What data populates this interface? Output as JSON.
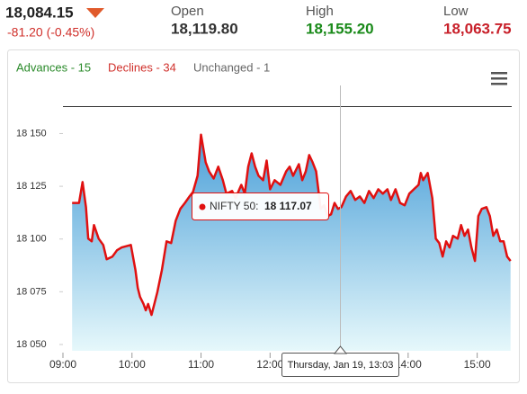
{
  "quote": {
    "last": "18,084.15",
    "change": "-81.20 (-0.45%)",
    "open_label": "Open",
    "open": "18,119.80",
    "high_label": "High",
    "high": "18,155.20",
    "low_label": "Low",
    "low": "18,063.75"
  },
  "breadth": [
    "Advances - 15",
    "Declines - 34",
    "Unchanged - 1"
  ],
  "tooltip": {
    "label": "NIFTY 50:",
    "value": "18 117.07",
    "date": "Thursday, Jan 19, 13:03"
  },
  "chart_data": {
    "type": "area",
    "color": "#e01010",
    "x": [
      "09:08",
      "09:14",
      "09:17",
      "09:20",
      "09:22",
      "09:25",
      "09:27",
      "09:31",
      "09:35",
      "09:38",
      "09:43",
      "09:47",
      "09:51",
      "09:59",
      "10:03",
      "10:05",
      "10:07",
      "10:10",
      "10:12",
      "10:14",
      "10:17",
      "10:18",
      "10:22",
      "10:26",
      "10:30",
      "10:34",
      "10:38",
      "10:42",
      "10:46",
      "10:50",
      "10:53",
      "10:57",
      "11:00",
      "11:04",
      "11:07",
      "11:11",
      "11:15",
      "11:19",
      "11:22",
      "11:27",
      "11:30",
      "11:35",
      "11:38",
      "11:41",
      "11:44",
      "11:47",
      "11:50",
      "11:54",
      "11:57",
      "12:00",
      "12:04",
      "12:09",
      "12:14",
      "12:17",
      "12:20",
      "12:25",
      "12:28",
      "12:31",
      "12:34",
      "12:37",
      "12:40",
      "12:44",
      "12:47",
      "12:50",
      "12:53",
      "12:56",
      "12:59",
      "13:02",
      "13:06",
      "13:10",
      "13:14",
      "13:18",
      "13:22",
      "13:26",
      "13:30",
      "13:34",
      "13:38",
      "13:42",
      "13:45",
      "13:49",
      "13:53",
      "13:57",
      "14:01",
      "14:05",
      "14:09",
      "14:11",
      "14:13",
      "14:17",
      "14:21",
      "14:24",
      "14:27",
      "14:30",
      "14:33",
      "14:36",
      "14:39",
      "14:43",
      "14:46",
      "14:49",
      "14:52",
      "14:55",
      "14:58",
      "15:01",
      "15:04",
      "15:08",
      "15:11",
      "15:14",
      "15:17",
      "15:20",
      "15:23",
      "15:26",
      "15:29"
    ],
    "values": [
      18117.1,
      18117.1,
      18127.0,
      18115.1,
      18100.2,
      18098.9,
      18106.6,
      18100.2,
      18097.2,
      18090.4,
      18091.7,
      18094.7,
      18096.0,
      18097.2,
      18085.3,
      18076.8,
      18072.6,
      18069.2,
      18066.2,
      18069.2,
      18064.0,
      18066.2,
      18074.7,
      18085.3,
      18098.9,
      18098.1,
      18108.7,
      18114.3,
      18117.1,
      18120.2,
      18122.3,
      18130.0,
      18149.5,
      18136.4,
      18132.1,
      18128.7,
      18134.3,
      18127.9,
      18121.5,
      18122.8,
      18119.4,
      18125.7,
      18121.5,
      18134.3,
      18140.6,
      18134.3,
      18130.0,
      18127.9,
      18137.2,
      18123.6,
      18127.9,
      18125.7,
      18132.1,
      18134.3,
      18130.0,
      18135.5,
      18127.9,
      18132.1,
      18139.8,
      18136.4,
      18132.1,
      18114.3,
      18116.0,
      18110.9,
      18111.7,
      18117.1,
      18114.3,
      18115.1,
      18120.2,
      18122.8,
      18118.5,
      18120.2,
      18117.1,
      18122.8,
      18119.4,
      18123.6,
      18121.5,
      18123.6,
      18118.5,
      18123.6,
      18117.1,
      18116.0,
      18121.5,
      18123.6,
      18125.7,
      18131.3,
      18127.9,
      18131.3,
      18119.4,
      18100.2,
      18098.1,
      18091.7,
      18098.9,
      18096.0,
      18101.5,
      18100.2,
      18106.6,
      18101.5,
      18104.5,
      18096.0,
      18089.6,
      18110.9,
      18114.3,
      18115.1,
      18110.9,
      18101.5,
      18104.5,
      18098.9,
      18098.9,
      18091.7,
      18089.6
    ],
    "xlim": [
      "09:00",
      "15:30"
    ],
    "xticks": [
      "09:00",
      "10:00",
      "11:00",
      "12:00",
      "14:00",
      "15:00"
    ],
    "ylim": [
      18047,
      18163
    ],
    "yticks": [
      {
        "value": 18050,
        "label": "18 050"
      },
      {
        "value": 18075,
        "label": "18 075"
      },
      {
        "value": 18100,
        "label": "18 100"
      },
      {
        "value": 18125,
        "label": "18 125"
      },
      {
        "value": 18150,
        "label": "18 150"
      }
    ]
  }
}
